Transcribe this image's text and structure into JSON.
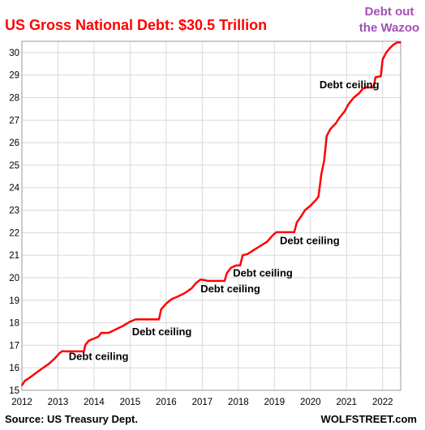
{
  "chart_data": {
    "type": "line",
    "title": "US Gross National Debt: $30.5 Trillion",
    "subtitle": "",
    "xlabel": "",
    "ylabel": "",
    "xlim": [
      2012,
      2022.5
    ],
    "ylim": [
      15,
      30.5
    ],
    "x_ticks": [
      "2012",
      "2013",
      "2014",
      "2015",
      "2016",
      "2017",
      "2018",
      "2019",
      "2020",
      "2021",
      "2022"
    ],
    "y_ticks": [
      "15",
      "16",
      "17",
      "18",
      "19",
      "20",
      "21",
      "22",
      "23",
      "24",
      "25",
      "26",
      "27",
      "28",
      "29",
      "30"
    ],
    "grid": true,
    "series": [
      {
        "color": "#ff0000",
        "points": [
          [
            2012.0,
            15.22
          ],
          [
            2012.08,
            15.42
          ],
          [
            2012.25,
            15.6
          ],
          [
            2012.5,
            15.9
          ],
          [
            2012.75,
            16.18
          ],
          [
            2012.9,
            16.4
          ],
          [
            2013.05,
            16.66
          ],
          [
            2013.12,
            16.74
          ],
          [
            2013.2,
            16.73
          ],
          [
            2013.72,
            16.73
          ],
          [
            2013.76,
            17.02
          ],
          [
            2013.85,
            17.2
          ],
          [
            2014.0,
            17.3
          ],
          [
            2014.12,
            17.38
          ],
          [
            2014.2,
            17.55
          ],
          [
            2014.28,
            17.55
          ],
          [
            2014.4,
            17.55
          ],
          [
            2014.6,
            17.7
          ],
          [
            2014.8,
            17.86
          ],
          [
            2015.0,
            18.05
          ],
          [
            2015.15,
            18.15
          ],
          [
            2015.8,
            18.15
          ],
          [
            2015.86,
            18.6
          ],
          [
            2016.0,
            18.85
          ],
          [
            2016.15,
            19.05
          ],
          [
            2016.3,
            19.15
          ],
          [
            2016.5,
            19.3
          ],
          [
            2016.7,
            19.52
          ],
          [
            2016.82,
            19.75
          ],
          [
            2016.95,
            19.92
          ],
          [
            2017.05,
            19.9
          ],
          [
            2017.15,
            19.86
          ],
          [
            2017.62,
            19.86
          ],
          [
            2017.68,
            20.2
          ],
          [
            2017.8,
            20.45
          ],
          [
            2017.95,
            20.55
          ],
          [
            2018.05,
            20.55
          ],
          [
            2018.12,
            21.0
          ],
          [
            2018.25,
            21.05
          ],
          [
            2018.4,
            21.2
          ],
          [
            2018.6,
            21.4
          ],
          [
            2018.8,
            21.6
          ],
          [
            2018.95,
            21.88
          ],
          [
            2019.05,
            22.02
          ],
          [
            2019.15,
            22.02
          ],
          [
            2019.55,
            22.02
          ],
          [
            2019.62,
            22.45
          ],
          [
            2019.75,
            22.75
          ],
          [
            2019.85,
            23.0
          ],
          [
            2020.0,
            23.2
          ],
          [
            2020.15,
            23.45
          ],
          [
            2020.22,
            23.6
          ],
          [
            2020.3,
            24.6
          ],
          [
            2020.38,
            25.2
          ],
          [
            2020.45,
            26.3
          ],
          [
            2020.55,
            26.6
          ],
          [
            2020.7,
            26.85
          ],
          [
            2020.8,
            27.1
          ],
          [
            2020.95,
            27.4
          ],
          [
            2021.05,
            27.7
          ],
          [
            2021.2,
            28.0
          ],
          [
            2021.35,
            28.2
          ],
          [
            2021.45,
            28.4
          ],
          [
            2021.55,
            28.45
          ],
          [
            2021.75,
            28.45
          ],
          [
            2021.8,
            28.9
          ],
          [
            2021.95,
            28.95
          ],
          [
            2022.0,
            29.7
          ],
          [
            2022.1,
            30.0
          ],
          [
            2022.2,
            30.2
          ],
          [
            2022.3,
            30.35
          ],
          [
            2022.4,
            30.45
          ],
          [
            2022.5,
            30.45
          ]
        ]
      }
    ],
    "annotations": [
      {
        "text": "Debt ceiling",
        "x": 2013.3,
        "y": 16.35
      },
      {
        "text": "Debt ceiling",
        "x": 2015.05,
        "y": 17.45
      },
      {
        "text": "Debt ceiling",
        "x": 2016.95,
        "y": 19.35
      },
      {
        "text": "Debt ceiling",
        "x": 2017.85,
        "y": 20.06
      },
      {
        "text": "Debt ceiling",
        "x": 2019.15,
        "y": 21.5
      },
      {
        "text": "Debt ceiling",
        "x": 2020.25,
        "y": 28.42
      }
    ],
    "corner_note": [
      "Debt out",
      "the Wazoo"
    ],
    "colors": {
      "series": "#ff0000",
      "title": "#ff0000",
      "corner_note": "#a34fb5"
    }
  },
  "source": "Source: US Treasury Dept.",
  "brand": "WOLFSTREET.com"
}
